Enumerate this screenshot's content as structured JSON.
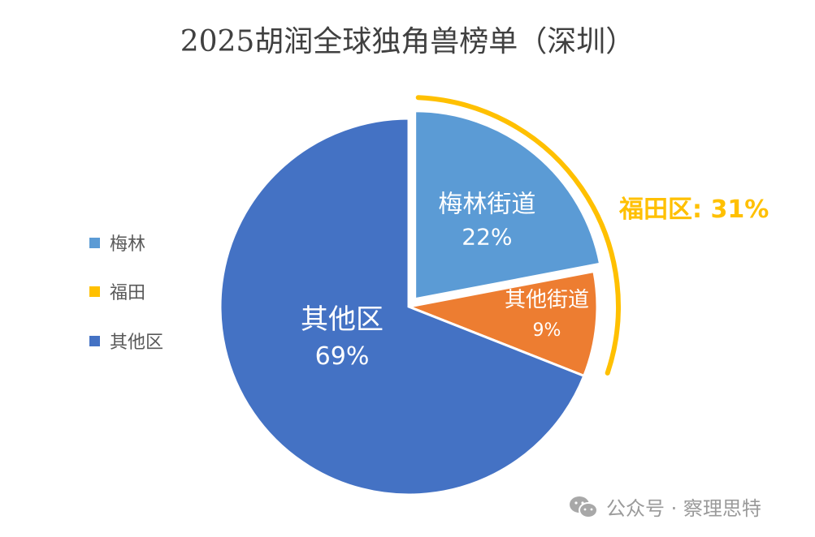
{
  "chart_data": {
    "type": "pie",
    "title": "2025胡润全球独角兽榜单（深圳）",
    "slices": [
      {
        "label": "梅林街道",
        "value": 22,
        "display": "22%",
        "color": "#5B9BD5",
        "exploded": true
      },
      {
        "label": "其他街道",
        "value": 9,
        "display": "9%",
        "color": "#ED7D31",
        "exploded": false
      },
      {
        "label": "其他区",
        "value": 69,
        "display": "69%",
        "color": "#4472C4",
        "exploded": false
      }
    ],
    "legend": {
      "position": "left",
      "entries": [
        {
          "label": "梅林",
          "color": "#5B9BD5"
        },
        {
          "label": "福田",
          "color": "#FFC000"
        },
        {
          "label": "其他区",
          "color": "#4472C4"
        }
      ]
    },
    "annotation": {
      "label": "福田区: 31%",
      "color": "#FFC000",
      "covers": [
        "梅林街道",
        "其他街道"
      ]
    }
  },
  "watermark": {
    "icon": "wechat-icon",
    "text": "公众号 · 察理思特"
  }
}
